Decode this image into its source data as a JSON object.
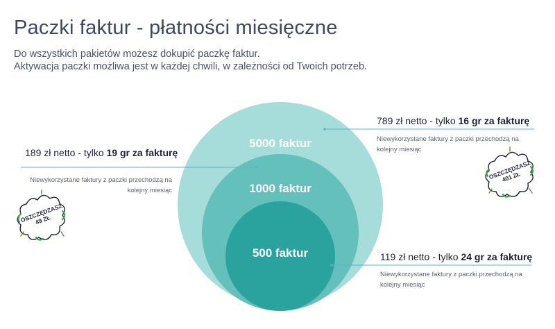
{
  "header": {
    "title": "Paczki faktur - płatności miesięczne",
    "subtitle_line1": "Do wszystkich pakietów możesz dokupić paczkę faktur.",
    "subtitle_line2": "Aktywacja paczki możliwa jest w każdej chwili, w zależności od Twoich potrzeb."
  },
  "circles": [
    {
      "label": "5000 faktur",
      "color": "#a6dcd9"
    },
    {
      "label": "1000 faktur",
      "color": "#63c0bb"
    },
    {
      "label": "500 faktur",
      "color": "#2aa39f"
    }
  ],
  "packages": {
    "p5000": {
      "price_prefix": "789 zł netto - tylko ",
      "price_bold": "16 gr za fakturę",
      "note": "Niewykorzystane faktury z paczki przechodzą na kolejny miesiąc",
      "badge_line1": "OSZCZĘDZASZ",
      "badge_line2": "401 ZŁ"
    },
    "p1000": {
      "price_prefix": "189 zł netto - tylko ",
      "price_bold": "19 gr za fakturę",
      "note_line1": "Niewykorzystane faktury z paczki przechodzą na",
      "note_line2": "kolejny miesiąc",
      "badge_line1": "OSZCZĘDZASZ",
      "badge_line2": "49 ZŁ"
    },
    "p500": {
      "price_prefix": "119 zł netto - tylko ",
      "price_bold": "24 gr za fakturę",
      "note_line1": "Niewykorzystane faktury z paczki przechodzą na",
      "note_line2": "kolejny miesiąc"
    }
  }
}
